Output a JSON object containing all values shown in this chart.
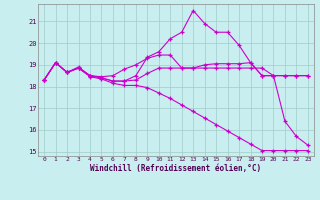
{
  "xlabel": "Windchill (Refroidissement éolien,°C)",
  "bg_color": "#c8eef0",
  "grid_color": "#a0ccc8",
  "line_color": "#cc00cc",
  "xlim": [
    -0.5,
    23.5
  ],
  "ylim": [
    14.8,
    21.8
  ],
  "yticks": [
    15,
    16,
    17,
    18,
    19,
    20,
    21
  ],
  "xticks": [
    0,
    1,
    2,
    3,
    4,
    5,
    6,
    7,
    8,
    9,
    10,
    11,
    12,
    13,
    14,
    15,
    16,
    17,
    18,
    19,
    20,
    21,
    22,
    23
  ],
  "line1_x": [
    0,
    1,
    2,
    3,
    4,
    5,
    6,
    7,
    8,
    9,
    10,
    11,
    12,
    13,
    14,
    15,
    16,
    17,
    18,
    19,
    20,
    21,
    22,
    23
  ],
  "line1_y": [
    18.3,
    19.1,
    18.65,
    18.9,
    18.5,
    18.4,
    18.25,
    18.25,
    18.5,
    19.35,
    19.6,
    20.2,
    20.5,
    21.5,
    20.9,
    20.5,
    20.5,
    19.9,
    19.1,
    18.5,
    18.5,
    16.4,
    15.7,
    15.3
  ],
  "line2_x": [
    0,
    1,
    2,
    3,
    4,
    5,
    6,
    7,
    8,
    9,
    10,
    11,
    12,
    13,
    14,
    15,
    16,
    17,
    18,
    19,
    20,
    21,
    22,
    23
  ],
  "line2_y": [
    18.3,
    19.1,
    18.65,
    18.85,
    18.5,
    18.45,
    18.5,
    18.8,
    19.0,
    19.3,
    19.45,
    19.45,
    18.85,
    18.85,
    19.0,
    19.05,
    19.05,
    19.05,
    19.1,
    18.5,
    18.5,
    18.5,
    18.5,
    18.5
  ],
  "line3_x": [
    0,
    1,
    2,
    3,
    4,
    5,
    6,
    7,
    8,
    9,
    10,
    11,
    12,
    13,
    14,
    15,
    16,
    17,
    18,
    19,
    20,
    21,
    22,
    23
  ],
  "line3_y": [
    18.3,
    19.1,
    18.65,
    18.85,
    18.5,
    18.4,
    18.25,
    18.25,
    18.3,
    18.6,
    18.85,
    18.85,
    18.85,
    18.85,
    18.85,
    18.85,
    18.85,
    18.85,
    18.85,
    18.85,
    18.5,
    18.5,
    18.5,
    18.5
  ],
  "line4_x": [
    0,
    1,
    2,
    3,
    4,
    5,
    6,
    7,
    8,
    9,
    10,
    11,
    12,
    13,
    14,
    15,
    16,
    17,
    18,
    19,
    20,
    21,
    22,
    23
  ],
  "line4_y": [
    18.3,
    19.1,
    18.65,
    18.85,
    18.45,
    18.35,
    18.15,
    18.05,
    18.05,
    17.95,
    17.7,
    17.45,
    17.15,
    16.85,
    16.55,
    16.25,
    15.95,
    15.65,
    15.35,
    15.05,
    15.05,
    15.05,
    15.05,
    15.05
  ]
}
